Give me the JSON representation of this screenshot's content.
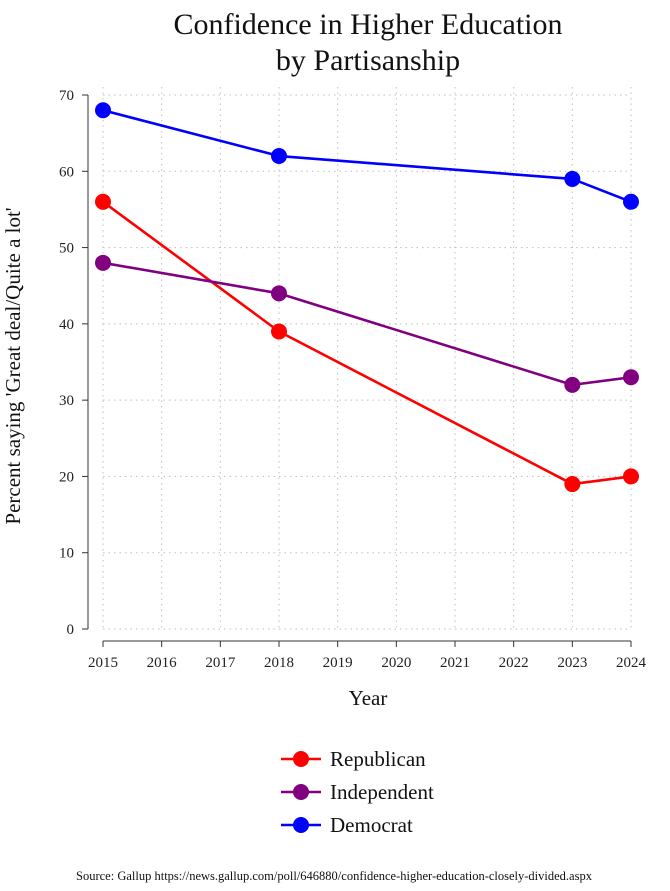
{
  "chart_data": {
    "type": "line",
    "title_lines": [
      "Confidence in Higher Education",
      "by Partisanship"
    ],
    "xlabel": "Year",
    "ylabel": "Percent saying 'Great deal/Quite a lot'",
    "xlim": [
      2015,
      2024
    ],
    "ylim": [
      0,
      70
    ],
    "x_ticks": [
      "2015",
      "2016",
      "2017",
      "2018",
      "2019",
      "2020",
      "2021",
      "2022",
      "2023",
      "2024"
    ],
    "y_ticks": [
      "0",
      "10",
      "20",
      "30",
      "40",
      "50",
      "60",
      "70"
    ],
    "grid": true,
    "series": [
      {
        "name": "Republican",
        "color": "#ff0000",
        "x": [
          2015,
          2018,
          2023,
          2024
        ],
        "values": [
          56,
          39,
          19,
          20
        ]
      },
      {
        "name": "Independent",
        "color": "#800080",
        "x": [
          2015,
          2018,
          2023,
          2024
        ],
        "values": [
          48,
          44,
          32,
          33
        ]
      },
      {
        "name": "Democrat",
        "color": "#0000ff",
        "x": [
          2015,
          2018,
          2023,
          2024
        ],
        "values": [
          68,
          62,
          59,
          56
        ]
      }
    ],
    "legend": {
      "placement": "bottom-center",
      "order": [
        "Republican",
        "Independent",
        "Democrat"
      ]
    },
    "source": "Source: Gallup https://news.gallup.com/poll/646880/confidence-higher-education-closely-divided.aspx"
  }
}
